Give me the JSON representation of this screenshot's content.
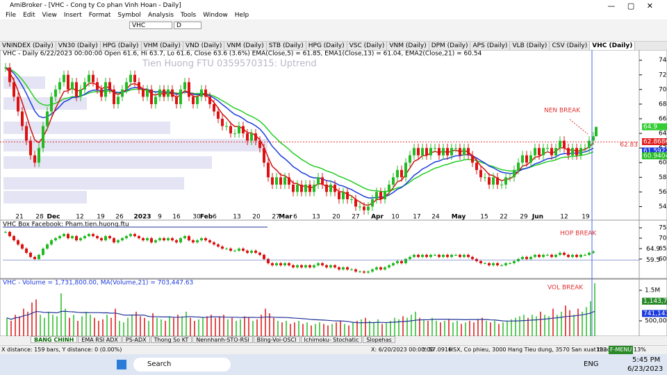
{
  "window": {
    "title": "AmiBroker - [VHC - Cong ty Co phan Vinh Hoan - Daily]"
  },
  "menu": [
    "File",
    "Edit",
    "View",
    "Insert",
    "Format",
    "Symbol",
    "Analysis",
    "Tools",
    "Window",
    "Help"
  ],
  "toolbar": {
    "symbol": "VHC",
    "interval": "D"
  },
  "tabs": [
    "VNINDEX (Daily)",
    "VN30 (Daily)",
    "HPG (Daily)",
    "VHM (Daily)",
    "VND (Daily)",
    "VNM (Daily)",
    "STB (Daily)",
    "HPG (Daily)",
    "VSC (Daily)",
    "VNM (Daily)",
    "DPM (Daily)",
    "APS (Daily)",
    "VLB (Daily)",
    "CSV (Daily)",
    "VHC (Daily)"
  ],
  "price_pane": {
    "header": "VHC - Daily 6/22/2023 00:00:00 Open 61.6, Hi 63.7, Lo 61.6, Close 63.6 (3.6%) EMA(Close,5) = 61.85, EMA1(Close,13) = 61.04, EMA2(Close,21) = 60.54",
    "watermark": "Tien Huong FTU 0359570315: Uptrend",
    "annotation": "NEN BREAK",
    "ylim": [
      53,
      75.3
    ],
    "yticks": [
      54,
      56,
      58,
      60,
      62,
      64,
      66,
      68,
      70,
      72,
      74
    ],
    "dates": [
      "21",
      "28",
      "Dec",
      "12",
      "19",
      "26",
      "2023",
      "9",
      "16",
      "30",
      "Feb",
      "6",
      "13",
      "20",
      "27",
      "Mar",
      "6",
      "13",
      "20",
      "27",
      "Apr",
      "10",
      "17",
      "24",
      "May",
      "15",
      "22",
      "29",
      "Jun",
      "12",
      "19"
    ],
    "closes": [
      73,
      71,
      69,
      67,
      65,
      63,
      61,
      60,
      62,
      65,
      67,
      69,
      70,
      71,
      72,
      70,
      71,
      69,
      70,
      71,
      72,
      71,
      70,
      69,
      71,
      70,
      68,
      69,
      70,
      71,
      72,
      71,
      70,
      69,
      70,
      68,
      69,
      70,
      69,
      70,
      69,
      68,
      70,
      71,
      69,
      68,
      69,
      70,
      69,
      68,
      67,
      66,
      65,
      65,
      64,
      64,
      65,
      64,
      63,
      64,
      63,
      62,
      60,
      58,
      57,
      58,
      57,
      58,
      57,
      56,
      57,
      56,
      57,
      56,
      57,
      58,
      57,
      56,
      57,
      56,
      55,
      56,
      55,
      55,
      54,
      54,
      53.5,
      54,
      55,
      56,
      55,
      56,
      57,
      58,
      59,
      58,
      60,
      61,
      62,
      61,
      62,
      61,
      62,
      62,
      61,
      62,
      61,
      62,
      62,
      61,
      62,
      61,
      60,
      59,
      58,
      58,
      57,
      58,
      57,
      57,
      58,
      58,
      59,
      60,
      61,
      60,
      61,
      62,
      61,
      62,
      62,
      61,
      62,
      63,
      62,
      61,
      62,
      61,
      62,
      62,
      63,
      63.6
    ],
    "last": 64.9,
    "level": 62.83,
    "ema5": 62.8686,
    "ema13": 61.5922,
    "ema21": 60.9404
  },
  "box_pane": {
    "header": "VHC   Box   Facebook: Pham.tien.huong.ftu",
    "annotation": "HOP BREAK",
    "ylim": [
      51,
      78
    ],
    "yticks": [
      60,
      65,
      70,
      75
    ],
    "last": 64.9,
    "low": 59.5
  },
  "volume_pane": {
    "header": "VHC - Volume = 1,731,800.00, MA(Volume,21) = 703,447.63",
    "annotation": "VOL BREAK",
    "ylim": [
      0,
      1820000
    ],
    "yticks": [
      {
        "value": 500000,
        "label": "500,000"
      },
      {
        "value": 1500000,
        "label": "1.5M"
      }
    ],
    "volume_label": {
      "value": 1143700,
      "label": "1,143,700"
    },
    "ma_label": {
      "value": 741143,
      "label": "741,143"
    },
    "values": [
      600000,
      500000,
      700000,
      650000,
      900000,
      800000,
      1100000,
      1200000,
      700000,
      600000,
      800000,
      700000,
      650000,
      1400000,
      900000,
      600000,
      700000,
      500000,
      650000,
      800000,
      700000,
      600000,
      500000,
      550000,
      700000,
      600000,
      900000,
      500000,
      450000,
      600000,
      700000,
      800000,
      650000,
      600000,
      500000,
      750000,
      600000,
      550000,
      500000,
      650000,
      600000,
      700000,
      650000,
      800000,
      600000,
      500000,
      550000,
      600000,
      650000,
      700000,
      600000,
      650000,
      700000,
      550000,
      600000,
      500000,
      550000,
      650000,
      600000,
      500000,
      550000,
      700000,
      900000,
      750000,
      600000,
      500000,
      450000,
      500000,
      400000,
      450000,
      500000,
      400000,
      450000,
      350000,
      400000,
      450000,
      400000,
      350000,
      400000,
      450000,
      500000,
      400000,
      350000,
      450000,
      500000,
      550000,
      600000,
      500000,
      450000,
      550000,
      400000,
      450000,
      500000,
      600000,
      550000,
      650000,
      600000,
      700000,
      800000,
      600000,
      550000,
      500000,
      600000,
      500000,
      450000,
      500000,
      550000,
      450000,
      500000,
      400000,
      450000,
      500000,
      450000,
      550000,
      600000,
      500000,
      450000,
      500000,
      400000,
      450000,
      500000,
      550000,
      600000,
      650000,
      700000,
      600000,
      700000,
      650000,
      800000,
      700000,
      650000,
      900000,
      700000,
      800000,
      1000000,
      850000,
      700000,
      900000,
      800000,
      950000,
      1143700,
      1731800
    ]
  },
  "sheet_tabs": [
    "BANG CHINH",
    "EMA RSI ADX",
    "PS-ADX",
    "Thong So KT",
    "Nennhanh-STO-RSI",
    "Bling-Voi-OSCI",
    "Ichimoku- Stochatic",
    "Slopehas"
  ],
  "status": {
    "left": "X distance: 159 bars, Y distance: 0 (0.00%)",
    "cursor": "X: 6/20/2023 00:00:00",
    "y": "Y: 57.0916",
    "info": "HSX, Co phieu, 3000 Hang Tieu dung, 3570 San xuat thuc pham",
    "count": "123",
    "mode": "F-MENU",
    "zoom": "13%"
  },
  "taskbar": {
    "search": "Search",
    "lang": "ENG",
    "time": "5:45 PM",
    "date": "6/23/2023"
  }
}
